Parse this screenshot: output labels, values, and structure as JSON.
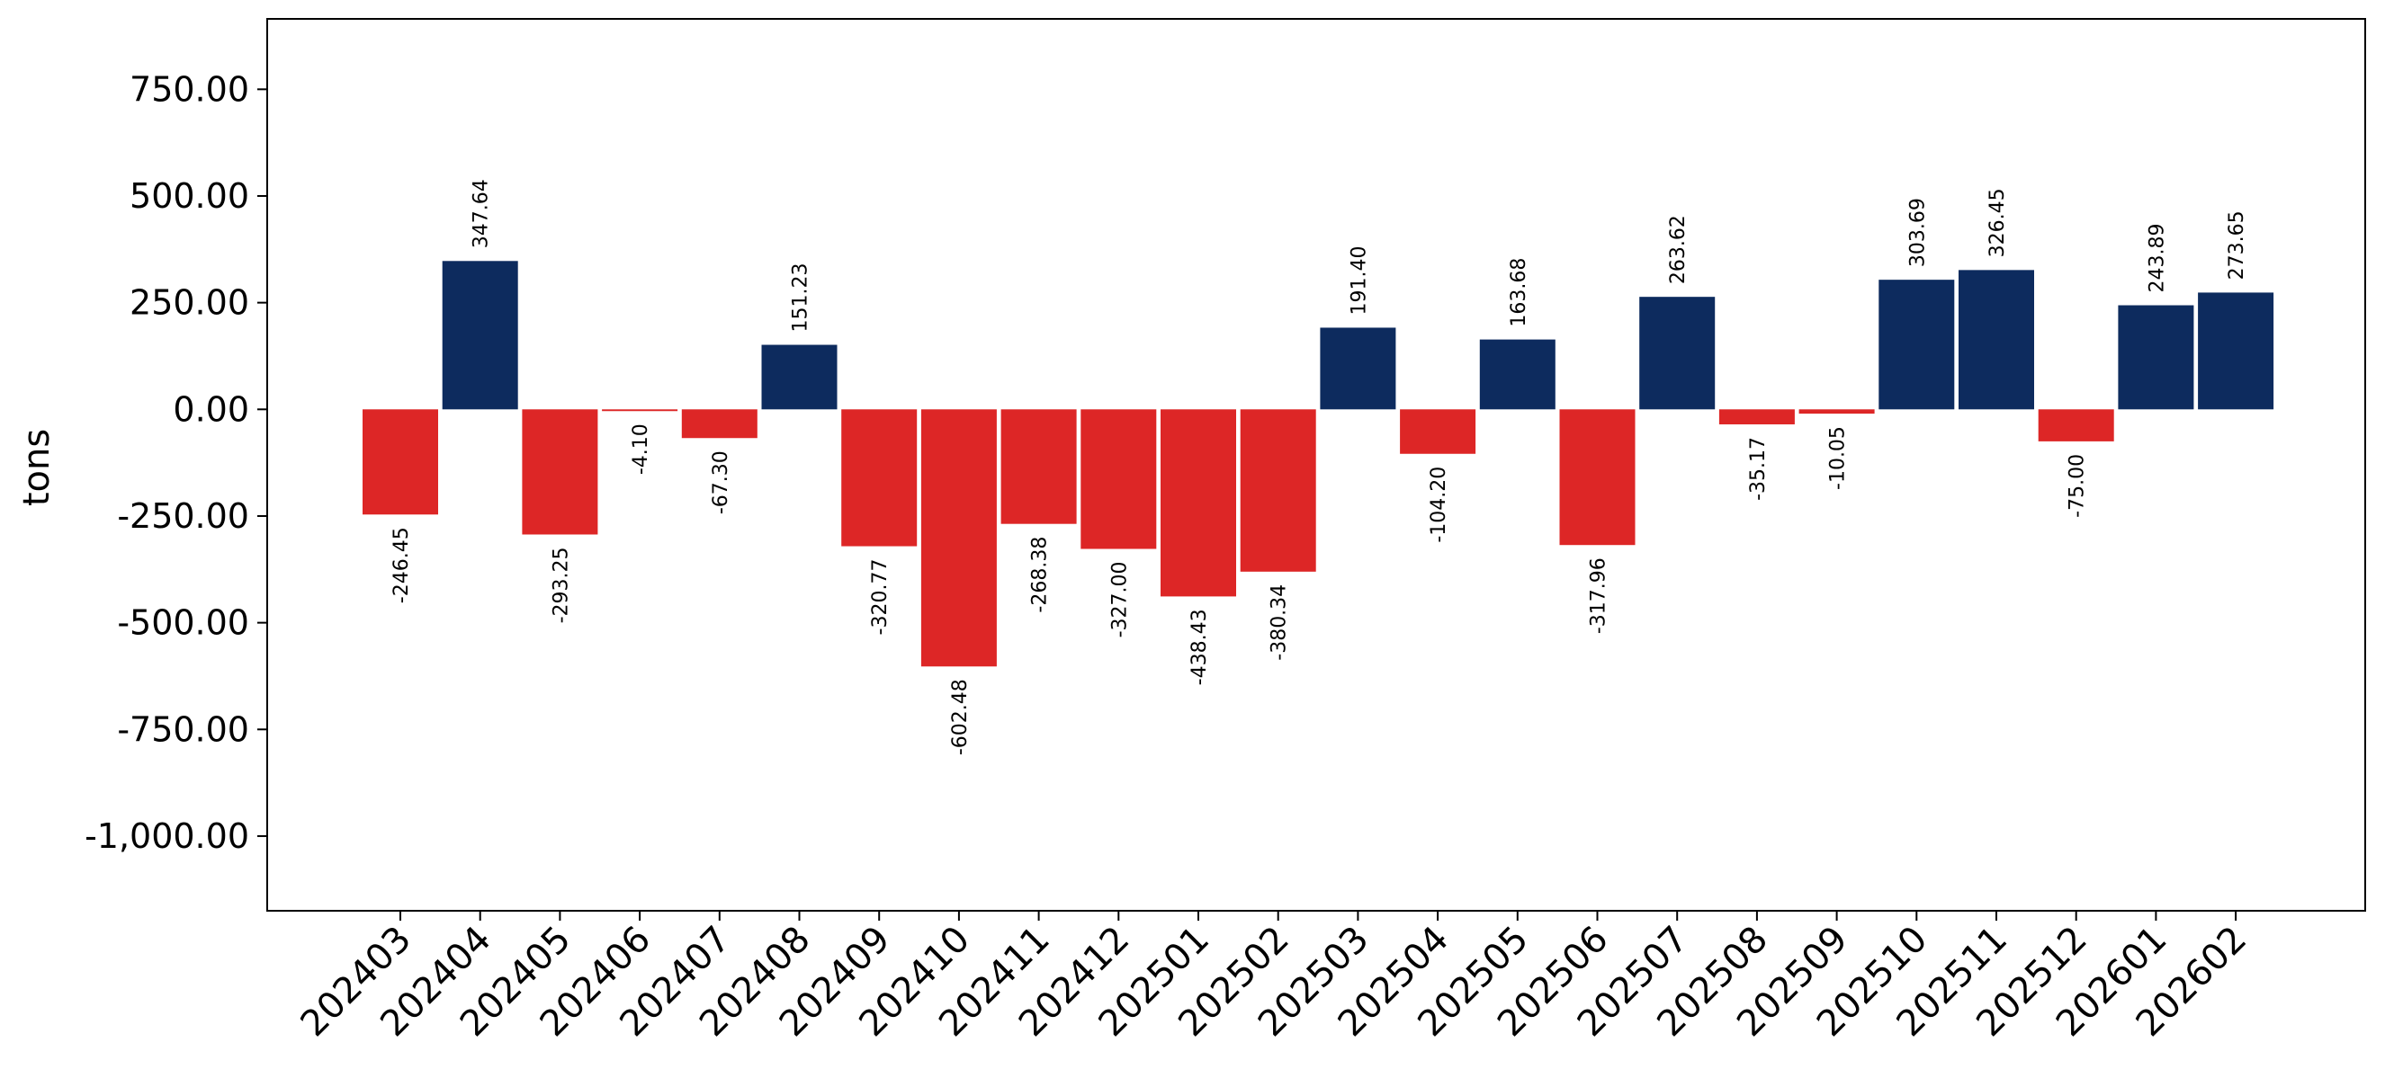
{
  "chart_data": {
    "type": "bar",
    "ylabel": "tons",
    "ylim": [
      -1175,
      915
    ],
    "yticks": [
      750,
      500,
      250,
      0,
      -250,
      -500,
      -750,
      -1000
    ],
    "ytick_labels": [
      "750.00",
      "500.00",
      "250.00",
      "0.00",
      "-250.00",
      "-500.00",
      "-750.00",
      "-1,000.00"
    ],
    "categories": [
      "202403",
      "202404",
      "202405",
      "202406",
      "202407",
      "202408",
      "202409",
      "202410",
      "202411",
      "202412",
      "202501",
      "202502",
      "202503",
      "202504",
      "202505",
      "202506",
      "202507",
      "202508",
      "202509",
      "202510",
      "202511",
      "202512",
      "202601",
      "202602"
    ],
    "values": [
      -246.45,
      347.64,
      -293.25,
      -4.1,
      -67.3,
      151.23,
      -320.77,
      -602.48,
      -268.38,
      -327.0,
      -438.43,
      -380.34,
      191.4,
      -104.2,
      163.68,
      -317.96,
      263.62,
      -35.17,
      -10.05,
      303.69,
      326.45,
      -75.0,
      243.89,
      273.65
    ],
    "value_labels": [
      "-246.45",
      "347.64",
      "-293.25",
      "-4.10",
      "-67.30",
      "151.23",
      "-320.77",
      "-602.48",
      "-268.38",
      "-327.00",
      "-438.43",
      "-380.34",
      "191.40",
      "-104.20",
      "163.68",
      "-317.96",
      "263.62",
      "-35.17",
      "-10.05",
      "303.69",
      "326.45",
      "-75.00",
      "243.89",
      "273.65"
    ],
    "colors": {
      "positive": "#0d2b5e",
      "negative": "#dd2626"
    },
    "grid": false,
    "legend": "none"
  }
}
